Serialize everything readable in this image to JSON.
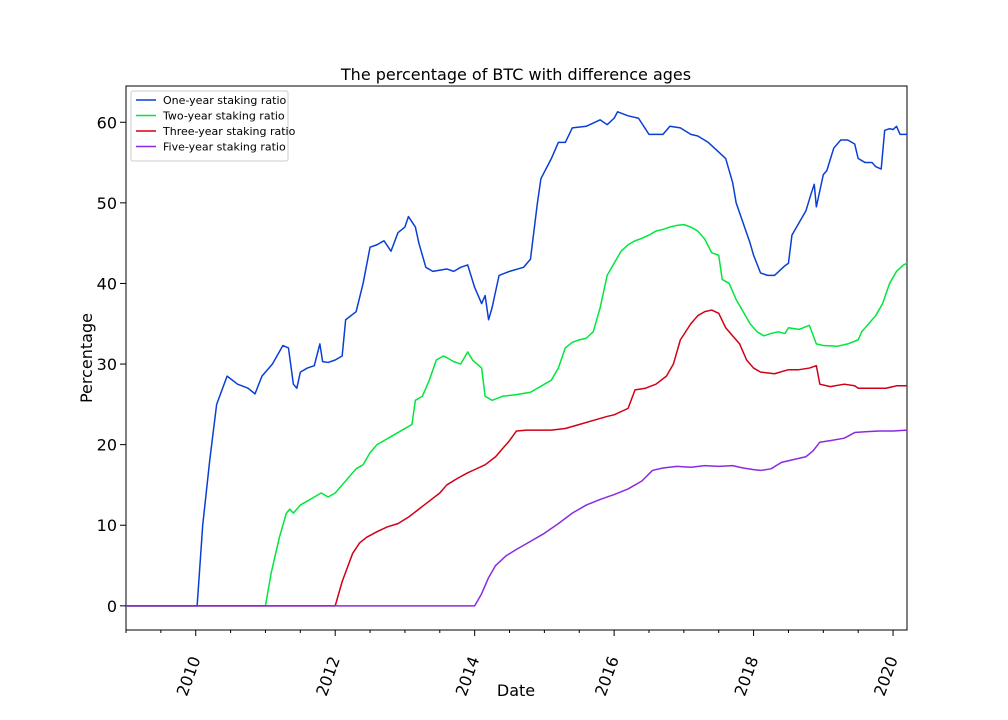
{
  "chart_data": {
    "type": "line",
    "title": "The percentage of BTC with difference ages",
    "xlabel": "Date",
    "ylabel": "Percentage",
    "x_tick_labels": [
      "2010",
      "2012",
      "2014",
      "2016",
      "2018",
      "2020"
    ],
    "x_tick_values": [
      2010,
      2012,
      2014,
      2016,
      2018,
      2020
    ],
    "y_tick_labels": [
      "0",
      "10",
      "20",
      "30",
      "40",
      "50",
      "60"
    ],
    "y_tick_values": [
      0,
      10,
      20,
      30,
      40,
      50,
      60
    ],
    "xlim": [
      2009.0,
      2020.2
    ],
    "ylim": [
      -3,
      64.5
    ],
    "grid": false,
    "legend_position": "upper left",
    "series": [
      {
        "name": "One-year staking ratio",
        "color": "#0a3fd6",
        "points": [
          [
            2009.0,
            0
          ],
          [
            2009.98,
            0
          ],
          [
            2010.02,
            0
          ],
          [
            2010.1,
            10
          ],
          [
            2010.2,
            18
          ],
          [
            2010.3,
            25
          ],
          [
            2010.45,
            28.5
          ],
          [
            2010.6,
            27.5
          ],
          [
            2010.75,
            27
          ],
          [
            2010.85,
            26.3
          ],
          [
            2010.95,
            28.5
          ],
          [
            2011.1,
            30
          ],
          [
            2011.25,
            32.3
          ],
          [
            2011.33,
            32
          ],
          [
            2011.4,
            27.5
          ],
          [
            2011.45,
            27
          ],
          [
            2011.5,
            29
          ],
          [
            2011.6,
            29.5
          ],
          [
            2011.7,
            29.8
          ],
          [
            2011.78,
            32.5
          ],
          [
            2011.82,
            30.3
          ],
          [
            2011.9,
            30.2
          ],
          [
            2012.0,
            30.5
          ],
          [
            2012.1,
            31
          ],
          [
            2012.15,
            35.5
          ],
          [
            2012.3,
            36.5
          ],
          [
            2012.4,
            40
          ],
          [
            2012.5,
            44.5
          ],
          [
            2012.6,
            44.8
          ],
          [
            2012.7,
            45.3
          ],
          [
            2012.8,
            44
          ],
          [
            2012.9,
            46.3
          ],
          [
            2013.0,
            47
          ],
          [
            2013.05,
            48.3
          ],
          [
            2013.15,
            47
          ],
          [
            2013.2,
            45
          ],
          [
            2013.3,
            42
          ],
          [
            2013.4,
            41.5
          ],
          [
            2013.6,
            41.8
          ],
          [
            2013.7,
            41.5
          ],
          [
            2013.8,
            42
          ],
          [
            2013.9,
            42.3
          ],
          [
            2014.0,
            39.5
          ],
          [
            2014.1,
            37.5
          ],
          [
            2014.15,
            38.5
          ],
          [
            2014.2,
            35.5
          ],
          [
            2014.25,
            37
          ],
          [
            2014.35,
            41
          ],
          [
            2014.5,
            41.5
          ],
          [
            2014.7,
            42
          ],
          [
            2014.8,
            43
          ],
          [
            2014.9,
            50
          ],
          [
            2014.95,
            53
          ],
          [
            2015.1,
            55.5
          ],
          [
            2015.2,
            57.5
          ],
          [
            2015.3,
            57.5
          ],
          [
            2015.4,
            59.3
          ],
          [
            2015.6,
            59.5
          ],
          [
            2015.8,
            60.3
          ],
          [
            2015.9,
            59.7
          ],
          [
            2016.0,
            60.5
          ],
          [
            2016.05,
            61.3
          ],
          [
            2016.2,
            60.8
          ],
          [
            2016.35,
            60.5
          ],
          [
            2016.5,
            58.5
          ],
          [
            2016.7,
            58.5
          ],
          [
            2016.8,
            59.5
          ],
          [
            2016.95,
            59.3
          ],
          [
            2017.1,
            58.5
          ],
          [
            2017.2,
            58.3
          ],
          [
            2017.35,
            57.5
          ],
          [
            2017.5,
            56.3
          ],
          [
            2017.6,
            55.5
          ],
          [
            2017.7,
            52.5
          ],
          [
            2017.75,
            50
          ],
          [
            2017.85,
            47.5
          ],
          [
            2017.95,
            45
          ],
          [
            2018.0,
            43.5
          ],
          [
            2018.1,
            41.3
          ],
          [
            2018.2,
            41
          ],
          [
            2018.3,
            41
          ],
          [
            2018.4,
            41.8
          ],
          [
            2018.45,
            42.2
          ],
          [
            2018.5,
            42.5
          ],
          [
            2018.55,
            46
          ],
          [
            2018.65,
            47.5
          ],
          [
            2018.75,
            49
          ],
          [
            2018.82,
            51
          ],
          [
            2018.87,
            52.3
          ],
          [
            2018.9,
            49.5
          ],
          [
            2018.95,
            51.5
          ],
          [
            2019.0,
            53.5
          ],
          [
            2019.05,
            54
          ],
          [
            2019.15,
            56.8
          ],
          [
            2019.25,
            57.8
          ],
          [
            2019.35,
            57.8
          ],
          [
            2019.45,
            57.3
          ],
          [
            2019.5,
            55.5
          ],
          [
            2019.6,
            55
          ],
          [
            2019.7,
            55
          ],
          [
            2019.75,
            54.5
          ],
          [
            2019.83,
            54.2
          ],
          [
            2019.88,
            59
          ],
          [
            2019.95,
            59.2
          ],
          [
            2020.0,
            59.1
          ],
          [
            2020.05,
            59.5
          ],
          [
            2020.1,
            58.5
          ],
          [
            2020.2,
            58.5
          ]
        ]
      },
      {
        "name": "Two-year staking ratio",
        "color": "#00e63c",
        "points": [
          [
            2009.0,
            0
          ],
          [
            2011.0,
            0
          ],
          [
            2011.08,
            4
          ],
          [
            2011.2,
            8.5
          ],
          [
            2011.3,
            11.5
          ],
          [
            2011.35,
            12
          ],
          [
            2011.4,
            11.5
          ],
          [
            2011.5,
            12.5
          ],
          [
            2011.6,
            13
          ],
          [
            2011.7,
            13.5
          ],
          [
            2011.8,
            14
          ],
          [
            2011.9,
            13.5
          ],
          [
            2012.0,
            14
          ],
          [
            2012.1,
            15
          ],
          [
            2012.2,
            16
          ],
          [
            2012.3,
            17
          ],
          [
            2012.4,
            17.5
          ],
          [
            2012.5,
            19
          ],
          [
            2012.6,
            20
          ],
          [
            2012.7,
            20.5
          ],
          [
            2012.8,
            21
          ],
          [
            2012.9,
            21.5
          ],
          [
            2013.1,
            22.5
          ],
          [
            2013.15,
            25.5
          ],
          [
            2013.25,
            26
          ],
          [
            2013.35,
            28
          ],
          [
            2013.45,
            30.5
          ],
          [
            2013.55,
            31
          ],
          [
            2013.6,
            30.8
          ],
          [
            2013.7,
            30.3
          ],
          [
            2013.8,
            30
          ],
          [
            2013.9,
            31.5
          ],
          [
            2013.97,
            30.5
          ],
          [
            2014.1,
            29.5
          ],
          [
            2014.15,
            26
          ],
          [
            2014.25,
            25.5
          ],
          [
            2014.4,
            26
          ],
          [
            2014.6,
            26.2
          ],
          [
            2014.8,
            26.5
          ],
          [
            2014.9,
            27
          ],
          [
            2015.0,
            27.5
          ],
          [
            2015.1,
            28
          ],
          [
            2015.2,
            29.5
          ],
          [
            2015.3,
            32
          ],
          [
            2015.4,
            32.7
          ],
          [
            2015.5,
            33
          ],
          [
            2015.6,
            33.2
          ],
          [
            2015.7,
            34
          ],
          [
            2015.8,
            37
          ],
          [
            2015.9,
            41
          ],
          [
            2016.0,
            42.5
          ],
          [
            2016.1,
            44
          ],
          [
            2016.2,
            44.8
          ],
          [
            2016.3,
            45.3
          ],
          [
            2016.4,
            45.6
          ],
          [
            2016.5,
            46
          ],
          [
            2016.6,
            46.5
          ],
          [
            2016.7,
            46.7
          ],
          [
            2016.8,
            47
          ],
          [
            2016.9,
            47.2
          ],
          [
            2017.0,
            47.3
          ],
          [
            2017.1,
            47
          ],
          [
            2017.2,
            46.5
          ],
          [
            2017.3,
            45.5
          ],
          [
            2017.4,
            43.8
          ],
          [
            2017.5,
            43.5
          ],
          [
            2017.55,
            40.5
          ],
          [
            2017.65,
            40
          ],
          [
            2017.75,
            38
          ],
          [
            2017.85,
            36.5
          ],
          [
            2017.95,
            35
          ],
          [
            2018.05,
            34
          ],
          [
            2018.15,
            33.5
          ],
          [
            2018.25,
            33.8
          ],
          [
            2018.35,
            34
          ],
          [
            2018.45,
            33.8
          ],
          [
            2018.5,
            34.5
          ],
          [
            2018.65,
            34.3
          ],
          [
            2018.8,
            34.8
          ],
          [
            2018.9,
            32.5
          ],
          [
            2019.0,
            32.3
          ],
          [
            2019.2,
            32.2
          ],
          [
            2019.35,
            32.5
          ],
          [
            2019.5,
            33
          ],
          [
            2019.55,
            34
          ],
          [
            2019.65,
            35
          ],
          [
            2019.75,
            36
          ],
          [
            2019.85,
            37.5
          ],
          [
            2019.95,
            40
          ],
          [
            2020.05,
            41.5
          ],
          [
            2020.15,
            42.3
          ],
          [
            2020.2,
            42.5
          ]
        ]
      },
      {
        "name": "Three-year staking ratio",
        "color": "#d10015",
        "points": [
          [
            2009.0,
            0
          ],
          [
            2012.0,
            0
          ],
          [
            2012.1,
            3
          ],
          [
            2012.25,
            6.5
          ],
          [
            2012.35,
            7.8
          ],
          [
            2012.45,
            8.5
          ],
          [
            2012.6,
            9.2
          ],
          [
            2012.75,
            9.8
          ],
          [
            2012.9,
            10.2
          ],
          [
            2013.05,
            11
          ],
          [
            2013.2,
            12
          ],
          [
            2013.35,
            13
          ],
          [
            2013.5,
            14
          ],
          [
            2013.6,
            15
          ],
          [
            2013.75,
            15.8
          ],
          [
            2013.9,
            16.5
          ],
          [
            2014.0,
            16.9
          ],
          [
            2014.15,
            17.5
          ],
          [
            2014.3,
            18.5
          ],
          [
            2014.4,
            19.5
          ],
          [
            2014.5,
            20.5
          ],
          [
            2014.6,
            21.7
          ],
          [
            2014.75,
            21.8
          ],
          [
            2014.9,
            21.8
          ],
          [
            2015.1,
            21.8
          ],
          [
            2015.3,
            22
          ],
          [
            2015.5,
            22.5
          ],
          [
            2015.7,
            23
          ],
          [
            2015.9,
            23.5
          ],
          [
            2016.0,
            23.7
          ],
          [
            2016.2,
            24.5
          ],
          [
            2016.3,
            26.8
          ],
          [
            2016.45,
            27
          ],
          [
            2016.6,
            27.5
          ],
          [
            2016.75,
            28.5
          ],
          [
            2016.85,
            30
          ],
          [
            2016.95,
            33
          ],
          [
            2017.1,
            35
          ],
          [
            2017.2,
            36
          ],
          [
            2017.3,
            36.5
          ],
          [
            2017.4,
            36.7
          ],
          [
            2017.5,
            36.3
          ],
          [
            2017.6,
            34.5
          ],
          [
            2017.7,
            33.5
          ],
          [
            2017.8,
            32.5
          ],
          [
            2017.9,
            30.5
          ],
          [
            2018.0,
            29.5
          ],
          [
            2018.1,
            29
          ],
          [
            2018.3,
            28.8
          ],
          [
            2018.5,
            29.3
          ],
          [
            2018.65,
            29.3
          ],
          [
            2018.8,
            29.5
          ],
          [
            2018.9,
            29.8
          ],
          [
            2018.95,
            27.5
          ],
          [
            2019.1,
            27.2
          ],
          [
            2019.3,
            27.5
          ],
          [
            2019.45,
            27.3
          ],
          [
            2019.5,
            27
          ],
          [
            2019.7,
            27
          ],
          [
            2019.9,
            27
          ],
          [
            2020.05,
            27.3
          ],
          [
            2020.2,
            27.3
          ]
        ]
      },
      {
        "name": "Five-year staking ratio",
        "color": "#8a2be2",
        "points": [
          [
            2009.0,
            0
          ],
          [
            2014.0,
            0
          ],
          [
            2014.1,
            1.5
          ],
          [
            2014.2,
            3.5
          ],
          [
            2014.3,
            5
          ],
          [
            2014.45,
            6.2
          ],
          [
            2014.6,
            7
          ],
          [
            2014.8,
            8
          ],
          [
            2015.0,
            9
          ],
          [
            2015.2,
            10.2
          ],
          [
            2015.4,
            11.5
          ],
          [
            2015.6,
            12.5
          ],
          [
            2015.8,
            13.2
          ],
          [
            2016.0,
            13.8
          ],
          [
            2016.2,
            14.5
          ],
          [
            2016.4,
            15.5
          ],
          [
            2016.55,
            16.8
          ],
          [
            2016.7,
            17.1
          ],
          [
            2016.9,
            17.3
          ],
          [
            2017.1,
            17.2
          ],
          [
            2017.3,
            17.4
          ],
          [
            2017.5,
            17.3
          ],
          [
            2017.7,
            17.4
          ],
          [
            2017.85,
            17.1
          ],
          [
            2018.0,
            16.9
          ],
          [
            2018.1,
            16.8
          ],
          [
            2018.25,
            17
          ],
          [
            2018.4,
            17.8
          ],
          [
            2018.6,
            18.2
          ],
          [
            2018.75,
            18.5
          ],
          [
            2018.85,
            19.2
          ],
          [
            2018.95,
            20.3
          ],
          [
            2019.1,
            20.5
          ],
          [
            2019.3,
            20.8
          ],
          [
            2019.45,
            21.5
          ],
          [
            2019.6,
            21.6
          ],
          [
            2019.8,
            21.7
          ],
          [
            2020.0,
            21.7
          ],
          [
            2020.2,
            21.8
          ]
        ]
      }
    ]
  }
}
